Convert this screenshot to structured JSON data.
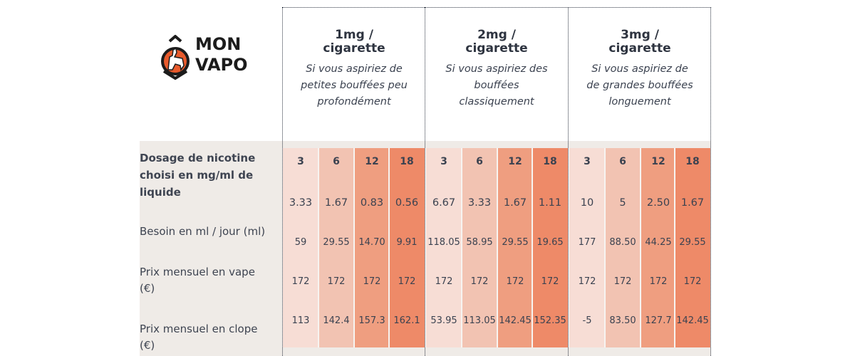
{
  "brand": {
    "line1": "MON",
    "line2": "VAPO",
    "accent": "#e85a2c"
  },
  "colors": {
    "col1": "#f7ddd5",
    "col2": "#f2c3b2",
    "col3": "#ef9e80",
    "col4": "#ee8a68",
    "panel": "#efebe7",
    "text": "#3e4451"
  },
  "groups": [
    {
      "title": "1mg /\ncigarette",
      "subtitle": "Si vous aspiriez de petites bouffées peu profondément"
    },
    {
      "title": "2mg /\ncigarette",
      "subtitle": "Si vous aspiriez des bouffées classiquement"
    },
    {
      "title": "3mg /\ncigarette",
      "subtitle": "Si vous aspiriez de de grandes bouffées longuement"
    }
  ],
  "row_labels": {
    "dosage": "Dosage de nicotine choisi en mg/ml de liquide",
    "besoin": "Besoin en ml / jour (ml)",
    "vape": "Prix mensuel en vape (€)",
    "clope": "Prix mensuel en clope (€)"
  },
  "table": {
    "dosages": [
      "3",
      "6",
      "12",
      "18",
      "3",
      "6",
      "12",
      "18",
      "3",
      "6",
      "12",
      "18"
    ],
    "row1": [
      "3.33",
      "1.67",
      "0.83",
      "0.56",
      "6.67",
      "3.33",
      "1.67",
      "1.11",
      "10",
      "5",
      "2.50",
      "1.67"
    ],
    "row2": [
      "59",
      "29.55",
      "14.70",
      "9.91",
      "118.05",
      "58.95",
      "29.55",
      "19.65",
      "177",
      "88.50",
      "44.25",
      "29.55"
    ],
    "row3": [
      "172",
      "172",
      "172",
      "172",
      "172",
      "172",
      "172",
      "172",
      "172",
      "172",
      "172",
      "172"
    ],
    "row4": [
      "113",
      "142.4",
      "157.3",
      "162.1",
      "53.95",
      "113.05",
      "142.45",
      "152.35",
      "-5",
      "83.50",
      "127.7",
      "142.45"
    ]
  }
}
